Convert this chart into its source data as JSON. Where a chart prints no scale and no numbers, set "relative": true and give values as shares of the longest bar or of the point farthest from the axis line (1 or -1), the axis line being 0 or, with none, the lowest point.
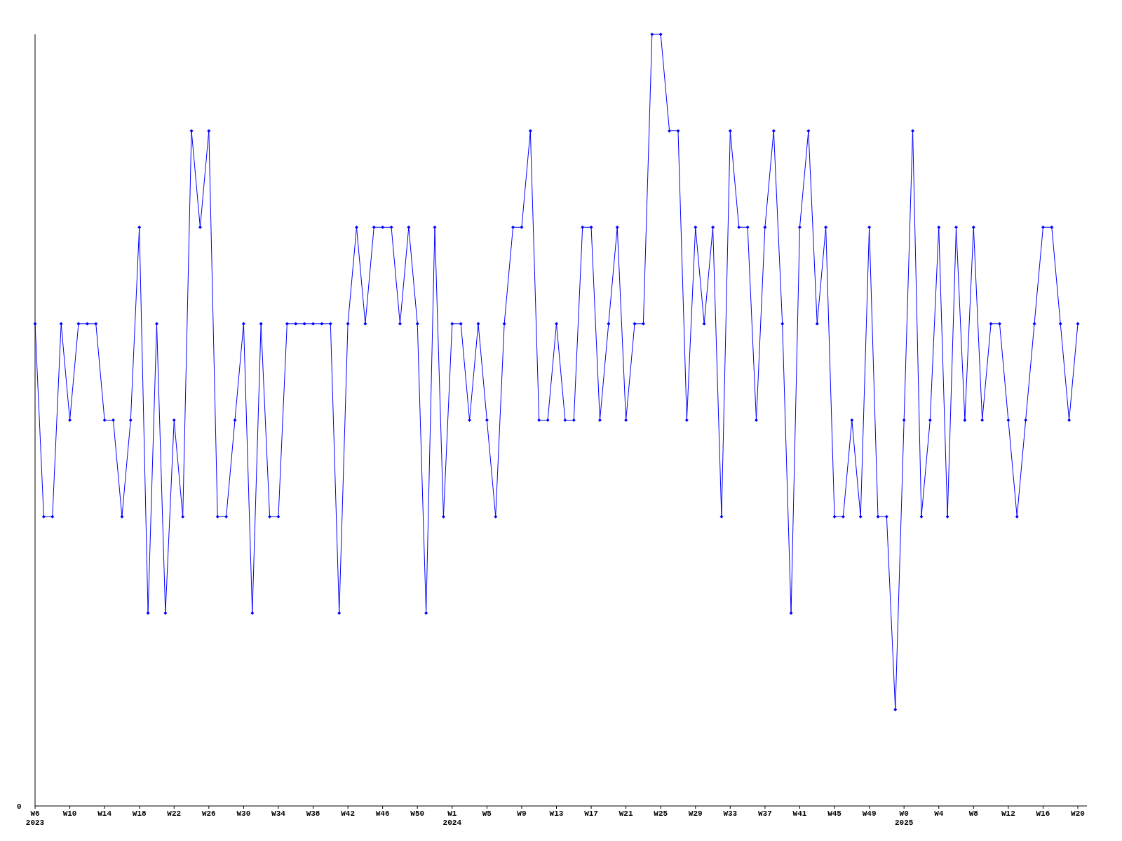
{
  "chart_data": {
    "type": "line",
    "relative": true,
    "marker": "diamond",
    "line_style": "solid",
    "annotations": [
      "0"
    ],
    "categories": [
      "W6\n2023",
      null,
      null,
      null,
      "W10",
      null,
      null,
      null,
      "W14",
      null,
      null,
      null,
      "W18",
      null,
      null,
      null,
      "W22",
      null,
      null,
      null,
      "W26",
      null,
      null,
      null,
      "W30",
      null,
      null,
      null,
      "W34",
      null,
      null,
      null,
      "W38",
      null,
      null,
      null,
      "W42",
      null,
      null,
      null,
      "W46",
      null,
      null,
      null,
      "W50",
      null,
      null,
      null,
      "W1\n2024",
      null,
      null,
      null,
      "W5",
      null,
      null,
      null,
      "W9",
      null,
      null,
      null,
      "W13",
      null,
      null,
      null,
      "W17",
      null,
      null,
      null,
      "W21",
      null,
      null,
      null,
      "W25",
      null,
      null,
      null,
      "W29",
      null,
      null,
      null,
      "W33",
      null,
      null,
      null,
      "W37",
      null,
      null,
      null,
      "W41",
      null,
      null,
      null,
      "W45",
      null,
      null,
      null,
      "W49",
      null,
      null,
      null,
      "W0\n2025",
      null,
      null,
      null,
      "W4",
      null,
      null,
      null,
      "W8",
      null,
      null,
      null,
      "W12",
      null,
      null,
      null,
      "W16",
      null,
      null,
      null,
      "W20"
    ],
    "series": [
      {
        "color": "#0000ff",
        "values": [
          0.625,
          0.375,
          0.375,
          0.625,
          0.5,
          0.625,
          0.625,
          0.625,
          0.5,
          0.5,
          0.375,
          0.5,
          0.75,
          0.25,
          0.625,
          0.25,
          0.5,
          0.375,
          0.875,
          0.75,
          0.875,
          0.375,
          0.375,
          0.5,
          0.625,
          0.25,
          0.625,
          0.375,
          0.375,
          0.625,
          0.625,
          0.625,
          0.625,
          0.625,
          0.625,
          0.25,
          0.625,
          0.75,
          0.625,
          0.75,
          0.75,
          0.75,
          0.625,
          0.75,
          0.625,
          0.25,
          0.75,
          0.375,
          0.625,
          0.625,
          0.5,
          0.625,
          0.5,
          0.375,
          0.625,
          0.75,
          0.75,
          0.875,
          0.5,
          0.5,
          0.625,
          0.5,
          0.5,
          0.75,
          0.75,
          0.5,
          0.625,
          0.75,
          0.5,
          0.625,
          0.625,
          1,
          1,
          0.875,
          0.875,
          0.5,
          0.75,
          0.625,
          0.75,
          0.375,
          0.875,
          0.75,
          0.75,
          0.5,
          0.75,
          0.875,
          0.625,
          0.25,
          0.75,
          0.875,
          0.625,
          0.75,
          0.375,
          0.375,
          0.5,
          0.375,
          0.75,
          0.375,
          0.375,
          0.125,
          0.5,
          0.875,
          0.375,
          0.5,
          0.75,
          0.375,
          0.75,
          0.5,
          0.75,
          0.5,
          0.625,
          0.625,
          0.5,
          0.375,
          0.5,
          0.625,
          0.75,
          0.75,
          0.625,
          0.5,
          0.625
        ]
      }
    ]
  }
}
